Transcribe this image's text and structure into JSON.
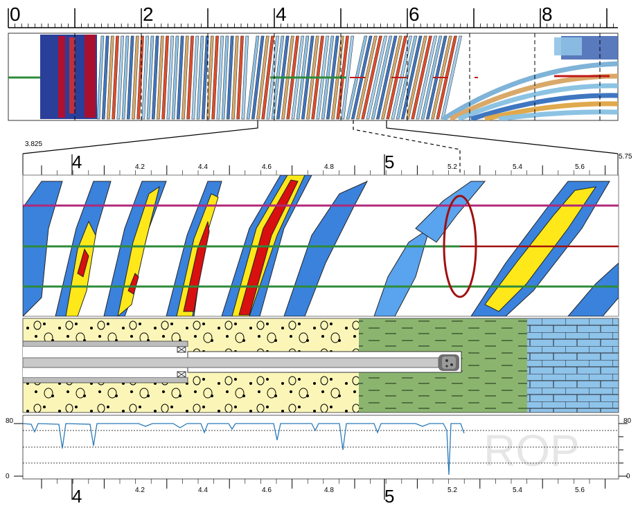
{
  "overview_scale": {
    "major_labels": [
      "0",
      "2",
      "4",
      "6",
      "8"
    ]
  },
  "detail_scale": {
    "range_start": "3.825",
    "range_end": "5.75",
    "major_labels": [
      "4",
      "5"
    ],
    "minor_labels": [
      "4.2",
      "4.4",
      "4.6",
      "4.8",
      "5.2",
      "5.4",
      "5.6"
    ]
  },
  "rop_track": {
    "watermark": "ROP",
    "left_top": "80",
    "left_bottom": "0",
    "right_top": "80",
    "right_bottom": "0"
  },
  "bottom_scale": {
    "major_labels": [
      "4",
      "5"
    ],
    "minor_labels": [
      "4.2",
      "4.4",
      "4.6",
      "4.8",
      "5.2",
      "5.4",
      "5.6"
    ]
  },
  "colors": {
    "lithology_sand": "#fbf6b8",
    "lithology_shale": "#8bb56f",
    "lithology_limestone": "#8ec3ea",
    "trajectory_green": "#2e8b3a",
    "horizon_magenta": "#b0287a",
    "horizon_red": "#a01010",
    "rop_curve": "#2a7ab8",
    "image_high": "#d81010",
    "image_mid": "#ffe81a",
    "image_low": "#2f74d6"
  },
  "icons": {
    "drill_bit": "drill-bit-icon"
  }
}
